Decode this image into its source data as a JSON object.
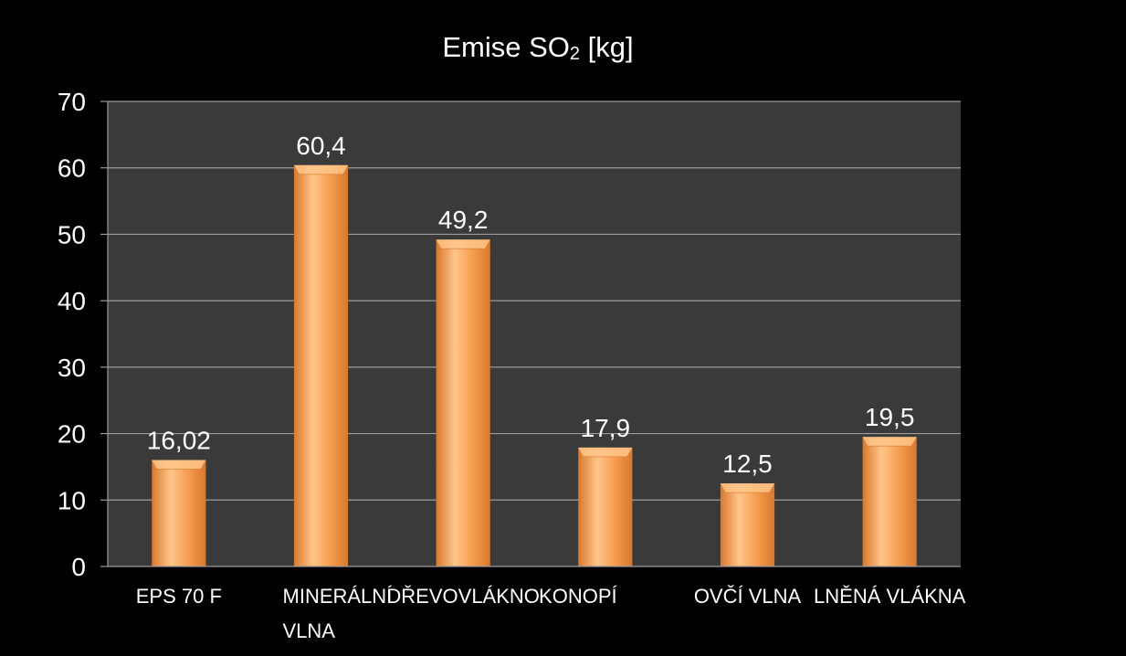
{
  "chart_data": {
    "type": "bar",
    "title": {
      "main": "Emise SO",
      "subscript": "2",
      "unit": " [kg]"
    },
    "categories": [
      [
        "EPS 70 F"
      ],
      [
        "MINERÁLNÍ",
        "VLNA"
      ],
      [
        "DŘEVOVLÁKNO"
      ],
      [
        "KONOPÍ"
      ],
      [
        "OVČÍ VLNA"
      ],
      [
        "LNĚNÁ VLÁKNA"
      ]
    ],
    "values": [
      16.02,
      60.4,
      49.2,
      17.9,
      12.5,
      19.5
    ],
    "data_labels": [
      "16,02",
      "60,4",
      "49,2",
      "17,9",
      "12,5",
      "19,5"
    ],
    "ylim": [
      0,
      70
    ],
    "yticks": [
      0,
      10,
      20,
      30,
      40,
      50,
      60,
      70
    ],
    "grid": true,
    "legend": "none",
    "colors": {
      "page_background": "#000000",
      "plot_background": "#3a3a3a",
      "gridline": "#9a9a9a",
      "bar_light": "#ffc68a",
      "bar_main": "#f7a053",
      "bar_dark": "#d9782c",
      "text": "#ffffff"
    }
  }
}
